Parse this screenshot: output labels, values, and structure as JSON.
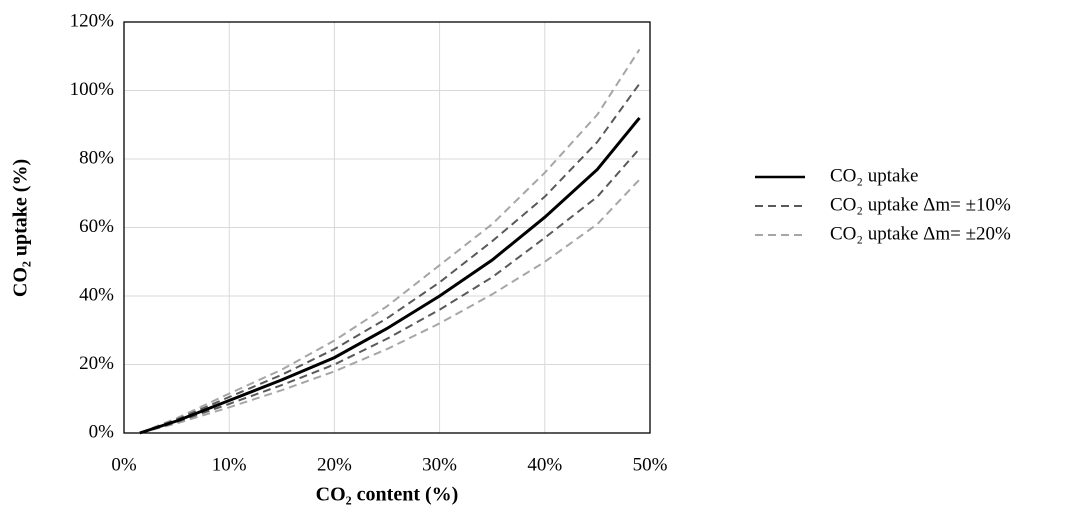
{
  "chart_data": {
    "type": "line",
    "x_label": "CO₂ content (%)",
    "y_label": "CO₂ uptake (%)",
    "x": [
      1.5,
      5,
      10,
      15,
      20,
      25,
      30,
      35,
      40,
      45,
      49
    ],
    "series": [
      {
        "name": "CO₂ uptake",
        "color": "#000000",
        "dashed": false,
        "values": [
          0,
          3.5,
          9.5,
          15.5,
          22,
          30.5,
          40,
          50.5,
          63,
          77,
          92
        ]
      },
      {
        "name": "CO₂ uptake Δm= ±10%",
        "color": "#595959",
        "dashed": true,
        "upper": [
          0,
          3.9,
          10.5,
          17,
          24.5,
          33.5,
          44,
          56,
          69,
          85,
          102
        ],
        "lower": [
          0,
          3.2,
          8.5,
          14,
          20,
          27.5,
          36,
          45.5,
          57,
          69,
          83
        ]
      },
      {
        "name": "CO₂ uptake Δm= ±20%",
        "color": "#a6a6a6",
        "dashed": true,
        "upper": [
          0,
          4.3,
          11.5,
          18.5,
          27,
          37,
          49,
          61,
          76,
          93,
          112
        ],
        "lower": [
          0,
          2.8,
          7.5,
          12.5,
          18,
          24.5,
          32,
          40.5,
          50,
          61,
          74
        ]
      }
    ],
    "xlim": [
      0,
      50
    ],
    "xticks": [
      {
        "value": 0,
        "label": "0%"
      },
      {
        "value": 10,
        "label": "10%"
      },
      {
        "value": 20,
        "label": "20%"
      },
      {
        "value": 30,
        "label": "30%"
      },
      {
        "value": 40,
        "label": "40%"
      },
      {
        "value": 50,
        "label": "50%"
      }
    ],
    "ylim": [
      0,
      120
    ],
    "yticks": [
      {
        "value": 0,
        "label": "0%"
      },
      {
        "value": 20,
        "label": "20%"
      },
      {
        "value": 40,
        "label": "40%"
      },
      {
        "value": 60,
        "label": "60%"
      },
      {
        "value": 80,
        "label": "80%"
      },
      {
        "value": 100,
        "label": "100%"
      },
      {
        "value": 120,
        "label": "120%"
      }
    ],
    "grid": true,
    "legend": "right"
  }
}
